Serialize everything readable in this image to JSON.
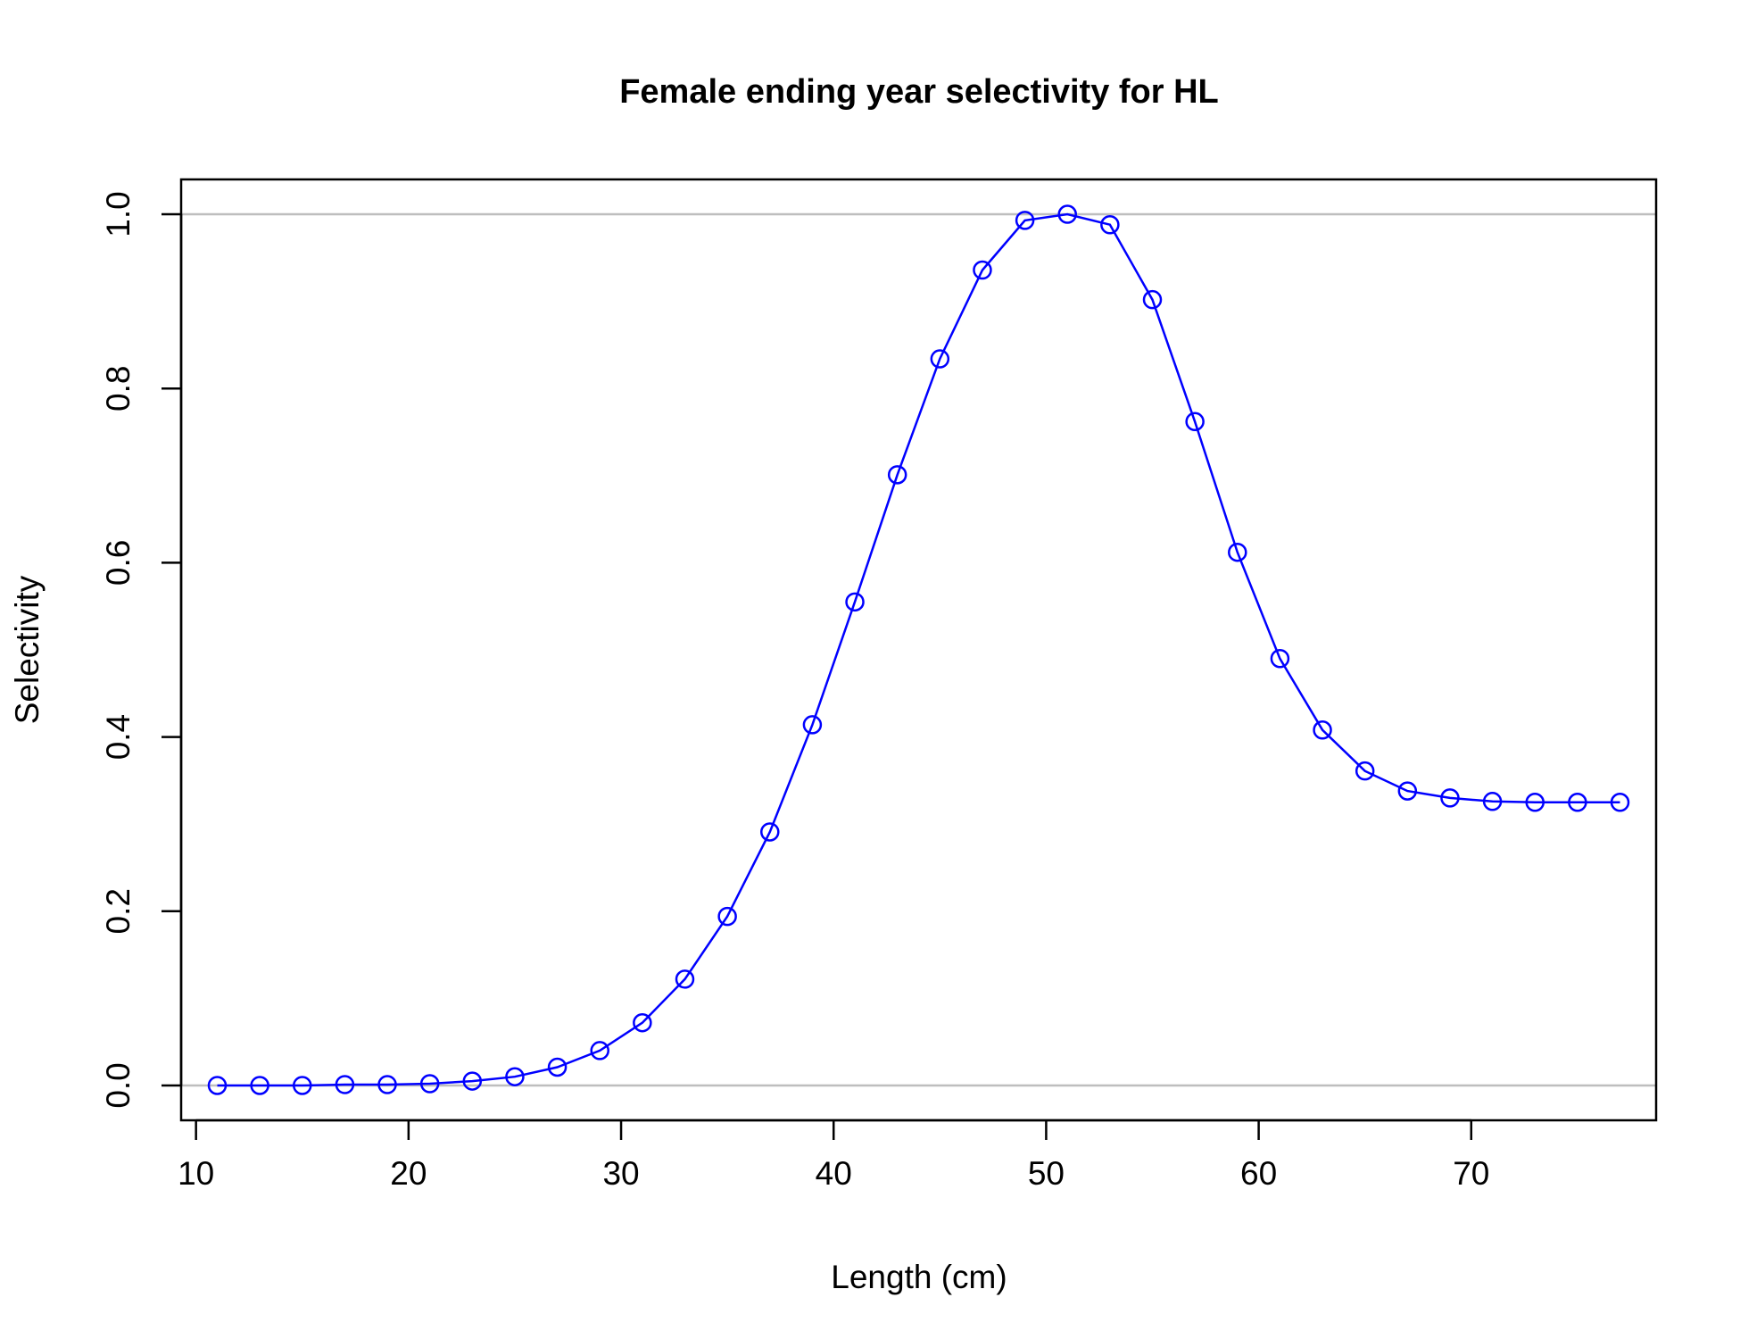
{
  "chart_data": {
    "type": "line",
    "title": "Female ending year selectivity for HL",
    "xlabel": "Length (cm)",
    "ylabel": "Selectivity",
    "xlim": [
      9.3,
      78.7
    ],
    "ylim": [
      -0.04,
      1.04
    ],
    "x_ticks": [
      10,
      20,
      30,
      40,
      50,
      60,
      70
    ],
    "x_tick_labels": [
      "10",
      "20",
      "30",
      "40",
      "50",
      "60",
      "70"
    ],
    "y_ticks": [
      0.0,
      0.2,
      0.4,
      0.6,
      0.8,
      1.0
    ],
    "y_tick_labels": [
      "0.0",
      "0.2",
      "0.4",
      "0.6",
      "0.8",
      "1.0"
    ],
    "reference_lines_y": [
      0,
      1
    ],
    "reference_line_color": "#bebebe",
    "grid": false,
    "series": [
      {
        "color": "#0000ff",
        "marker": "open-circle",
        "x": [
          11,
          13,
          15,
          17,
          19,
          21,
          23,
          25,
          27,
          29,
          31,
          33,
          35,
          37,
          39,
          41,
          43,
          45,
          47,
          49,
          51,
          53,
          55,
          57,
          59,
          61,
          63,
          65,
          67,
          69,
          71,
          73,
          75,
          77
        ],
        "y": [
          0.0,
          0.0,
          0.0,
          0.001,
          0.001,
          0.002,
          0.005,
          0.01,
          0.021,
          0.04,
          0.072,
          0.122,
          0.194,
          0.291,
          0.414,
          0.555,
          0.701,
          0.834,
          0.936,
          0.993,
          1.0,
          0.988,
          0.902,
          0.762,
          0.612,
          0.49,
          0.408,
          0.361,
          0.338,
          0.33,
          0.326,
          0.325,
          0.325,
          0.325
        ]
      }
    ]
  }
}
